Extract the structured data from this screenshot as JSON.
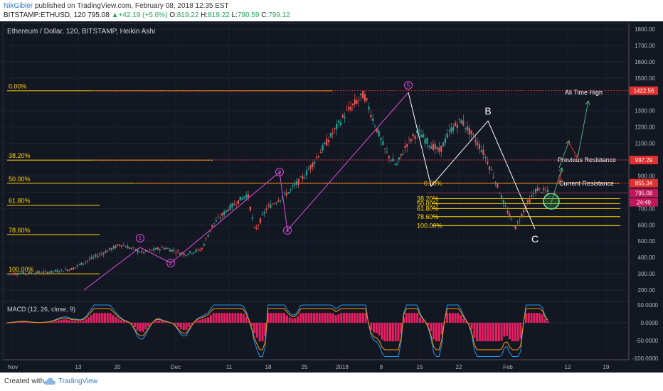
{
  "header": {
    "user": "NikGibler",
    "published": "published on TradingView.com, February 08, 2018 12:35 EST",
    "symbol": "BITSTAMP:ETHUSD, 120",
    "last": "795.08",
    "change": "+42.19 (+5.6%)",
    "o_label": "O:",
    "o": "819.22",
    "h_label": "H:",
    "h": "819.22",
    "l_label": "L:",
    "l": "790.59",
    "c_label": "C:",
    "c": "799.12"
  },
  "chart_title": "Ethereum / Dollar, 120, BITSTAMP, Heikin Ashi",
  "macd_label": "MACD (12, 26, close, 9)",
  "footer": {
    "created": "Created with",
    "brand": "TradingView"
  },
  "colors": {
    "background": "#131722",
    "up": "#26a69a",
    "down": "#ef5350",
    "fib": "#ffd400",
    "wave": "#d94cd9",
    "red_line": "#e03030",
    "macd_hist": "#e91e63",
    "macd_line": "#2196f3",
    "signal_line": "#ff9800"
  },
  "chart_data": [
    {
      "type": "candlestick",
      "title": "Ethereum / Dollar, 120, BITSTAMP, Heikin Ashi",
      "x_ticks": [
        "Nov",
        "13",
        "20",
        "Dec",
        "11",
        "18",
        "25",
        "2018",
        "8",
        "15",
        "22",
        "Feb",
        "12",
        "19"
      ],
      "y_ticks": [
        200,
        300,
        400,
        500,
        600,
        700,
        800,
        900,
        1000,
        1100,
        1200,
        1300,
        1400,
        1500,
        1600,
        1700,
        1800
      ],
      "y_tick_labels": [
        "200.00",
        "300.00",
        "400.00",
        "500.00",
        "600.00",
        "700.00",
        "",
        "900.00",
        "",
        "1100.00",
        "1200.00",
        "1300.00",
        "",
        "1500.00",
        "1600.00",
        "1700.00",
        "1800.00"
      ],
      "ylim": [
        130,
        1840
      ],
      "price_path": [
        [
          0,
          300
        ],
        [
          0.08,
          310
        ],
        [
          0.12,
          330
        ],
        [
          0.16,
          400
        ],
        [
          0.21,
          480
        ],
        [
          0.25,
          430
        ],
        [
          0.29,
          460
        ],
        [
          0.33,
          420
        ],
        [
          0.36,
          450
        ],
        [
          0.38,
          600
        ],
        [
          0.41,
          700
        ],
        [
          0.445,
          790
        ],
        [
          0.458,
          560
        ],
        [
          0.48,
          700
        ],
        [
          0.52,
          800
        ],
        [
          0.55,
          900
        ],
        [
          0.57,
          1000
        ],
        [
          0.6,
          1150
        ],
        [
          0.63,
          1300
        ],
        [
          0.66,
          1400
        ],
        [
          0.68,
          1220
        ],
        [
          0.7,
          1050
        ],
        [
          0.72,
          960
        ],
        [
          0.74,
          1100
        ],
        [
          0.76,
          1170
        ],
        [
          0.78,
          1100
        ],
        [
          0.8,
          1050
        ],
        [
          0.82,
          1180
        ],
        [
          0.84,
          1240
        ],
        [
          0.86,
          1150
        ],
        [
          0.88,
          1050
        ],
        [
          0.9,
          900
        ],
        [
          0.92,
          720
        ],
        [
          0.94,
          580
        ],
        [
          0.96,
          720
        ],
        [
          0.98,
          820
        ],
        [
          1.0,
          800
        ]
      ],
      "last_price": {
        "value": 795.08,
        "label": "795.08"
      },
      "countdown": "24:49",
      "resistance_lines": [
        {
          "value": 1422.56,
          "label": "1422.56"
        },
        {
          "value": 997.29,
          "label": "997.29"
        },
        {
          "value": 855.34,
          "label": "855.34"
        }
      ],
      "fib_large": [
        {
          "label": "0.00%",
          "value": 1422
        },
        {
          "label": "38.20%",
          "value": 997
        },
        {
          "label": "50.00%",
          "value": 855
        },
        {
          "label": "61.80%",
          "value": 720
        },
        {
          "label": "78.60%",
          "value": 540
        },
        {
          "label": "100.00%",
          "value": 300
        }
      ],
      "fib_small": [
        {
          "label": "0.00%",
          "value": 855
        },
        {
          "label": "38.20%",
          "value": 760
        },
        {
          "label": "50.00%",
          "value": 730
        },
        {
          "label": "61.80%",
          "value": 700
        },
        {
          "label": "78.60%",
          "value": 650
        },
        {
          "label": "100.00%",
          "value": 595
        }
      ],
      "impulse_waves": [
        "1",
        "2",
        "3",
        "4",
        "5"
      ],
      "abc_labels": [
        "B",
        "C"
      ],
      "annotations": [
        "All Time High",
        "Previous Resistance",
        "Current Resistance"
      ]
    },
    {
      "type": "line",
      "title": "MACD (12, 26, close, 9)",
      "y_ticks": [
        50,
        0,
        -50,
        -100
      ],
      "y_tick_labels": [
        "50.0000",
        "0.0000",
        "-50.0000",
        "-100.0000"
      ],
      "ylim": [
        -110,
        60
      ]
    }
  ]
}
